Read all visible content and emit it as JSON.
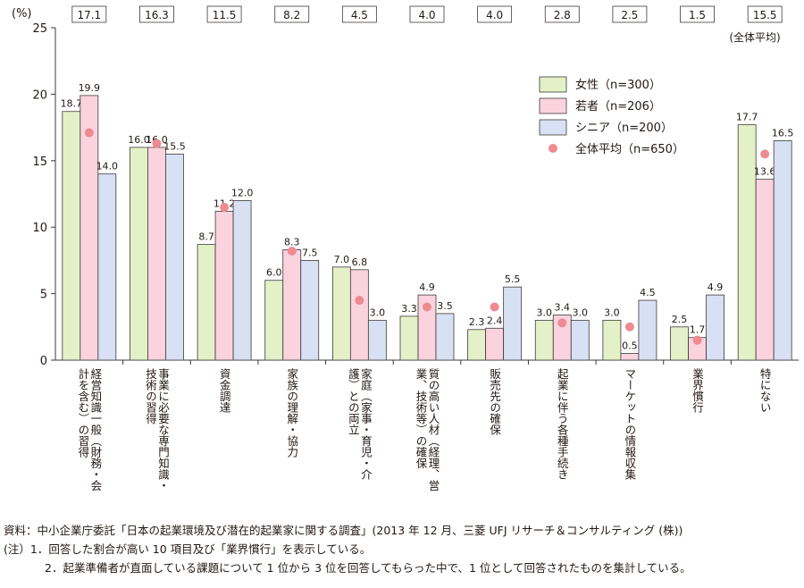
{
  "chart_data": {
    "type": "bar",
    "unit_label": "(%)",
    "ylim": [
      0,
      25
    ],
    "yticks": [
      0,
      5,
      10,
      15,
      20,
      25
    ],
    "grid": false,
    "legend_position": "top-right",
    "categories": [
      [
        "経営知識一般（財務・会",
        "計を含む）の習得"
      ],
      [
        "事業に必要な専門知識・",
        "技術の習得"
      ],
      [
        "資金調達"
      ],
      [
        "家族の理解・協力"
      ],
      [
        "家庭（家事・育児・介",
        "護）との両立"
      ],
      [
        "質の高い人材（経理、営",
        "業、技術等）の確保"
      ],
      [
        "販売先の確保"
      ],
      [
        "起業に伴う各種手続き"
      ],
      [
        "マーケットの情報収集"
      ],
      [
        "業界慣行"
      ],
      [
        "特にない"
      ]
    ],
    "series": [
      {
        "name": "女性（n=300）",
        "color": "#e3f0c8",
        "values": [
          18.7,
          16.0,
          8.7,
          6.0,
          7.0,
          3.3,
          2.3,
          3.0,
          3.0,
          2.5,
          17.7
        ],
        "labels": [
          "18.7",
          "16.0",
          "8.7",
          "6.0",
          "7.0",
          "3.3",
          "2.3",
          "3.0",
          "3.0",
          "2.5",
          "17.7"
        ]
      },
      {
        "name": "若者（n=206）",
        "color": "#fad3de",
        "values": [
          19.9,
          16.0,
          11.2,
          8.3,
          6.8,
          4.9,
          2.4,
          3.4,
          0.5,
          1.7,
          13.6
        ],
        "labels": [
          "19.9",
          "16.0",
          "11.2",
          "8.3",
          "6.8",
          "4.9",
          "2.4",
          "3.4",
          "0.5",
          "1.7",
          "13.6"
        ]
      },
      {
        "name": "シニア（n=200）",
        "color": "#d8e0f3",
        "values": [
          14.0,
          15.5,
          12.0,
          7.5,
          3.0,
          3.5,
          5.5,
          3.0,
          4.5,
          4.9,
          16.5
        ],
        "labels": [
          "14.0",
          "15.5",
          "12.0",
          "7.5",
          "3.0",
          "3.5",
          "5.5",
          "3.0",
          "4.5",
          "4.9",
          "16.5"
        ]
      }
    ],
    "average": {
      "name": "全体平均（n=650）",
      "color": "#ee8a92",
      "values": [
        17.1,
        16.3,
        11.5,
        8.2,
        4.5,
        4.0,
        4.0,
        2.8,
        2.5,
        1.5,
        15.5
      ],
      "labels": [
        "17.1",
        "16.3",
        "11.5",
        "8.2",
        "4.5",
        "4.0",
        "4.0",
        "2.8",
        "2.5",
        "1.5",
        "15.5"
      ]
    },
    "average_box_caption": "(全体平均)"
  },
  "notes": {
    "source": "資料：中小企業庁委託「日本の起業環境及び潜在的起業家に関する調査」(2013 年 12 月、三菱 UFJ リサーチ＆コンサルティング (株))",
    "note1": "(注）1．回答した割合が高い 10 項目及び「業界慣行」を表示している。",
    "note2": "2．起業準備者が直面している課題について 1 位から 3 位を回答してもらった中で、1 位として回答されたものを集計している。"
  }
}
